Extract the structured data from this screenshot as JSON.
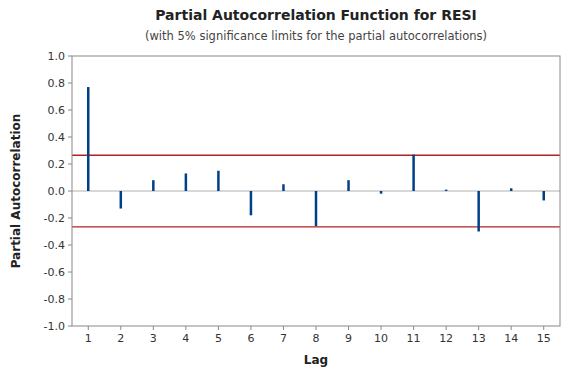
{
  "chart_data": {
    "type": "stem",
    "title": "Partial Autocorrelation Function for RESI",
    "subtitle": "(with 5% significance limits for the partial autocorrelations)",
    "x_label": "Lag",
    "y_label": "Partial Autocorrelation",
    "x": [
      1,
      2,
      3,
      4,
      5,
      6,
      7,
      8,
      9,
      10,
      11,
      12,
      13,
      14,
      15
    ],
    "values": [
      0.77,
      -0.13,
      0.08,
      0.13,
      0.15,
      -0.18,
      0.05,
      -0.26,
      0.08,
      -0.02,
      0.27,
      0.01,
      -0.3,
      0.02,
      -0.07
    ],
    "sig_limits": [
      0.265,
      -0.265
    ],
    "color": "#003f8a",
    "xlim": [
      0.5,
      15.5
    ],
    "xticks": [
      1,
      2,
      3,
      4,
      5,
      6,
      7,
      8,
      9,
      10,
      11,
      12,
      13,
      14,
      15
    ],
    "ylim": [
      -1.0,
      1.0
    ],
    "yticks": [
      {
        "value": -1.0,
        "label": "-1.0"
      },
      -0.8,
      -0.6,
      -0.4,
      -0.2,
      {
        "value": 0.0,
        "label": "0.0"
      },
      0.2,
      0.4,
      0.6,
      0.8,
      {
        "value": 1.0,
        "label": "1.0"
      }
    ],
    "grid": false
  }
}
